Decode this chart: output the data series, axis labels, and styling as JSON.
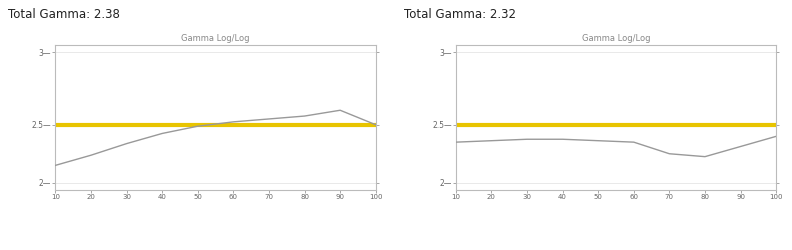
{
  "chart1": {
    "title": "Total Gamma: 2.38",
    "subtitle": "Gamma Log/Log",
    "xlim": [
      10,
      100
    ],
    "ylim": [
      2.05,
      3.05
    ],
    "yticks": [
      2.1,
      2.5,
      3.0
    ],
    "ytick_labels": [
      "2—",
      "2.5—",
      "3—"
    ],
    "xticks": [
      10,
      20,
      30,
      40,
      50,
      60,
      70,
      80,
      90,
      100
    ],
    "ref_line_y": 2.5,
    "ref_color": "#e8c400",
    "curve_x": [
      10,
      20,
      30,
      40,
      50,
      60,
      70,
      80,
      90,
      100
    ],
    "curve_y": [
      2.22,
      2.29,
      2.37,
      2.44,
      2.49,
      2.52,
      2.54,
      2.56,
      2.6,
      2.5
    ],
    "curve_color": "#999999",
    "bg_color": "#ffffff"
  },
  "chart2": {
    "title": "Total Gamma: 2.32",
    "subtitle": "Gamma Log/Log",
    "xlim": [
      10,
      100
    ],
    "ylim": [
      2.05,
      3.05
    ],
    "yticks": [
      2.1,
      2.5,
      3.0
    ],
    "ytick_labels": [
      "2—",
      "2.5—",
      "3—"
    ],
    "xticks": [
      10,
      20,
      30,
      40,
      50,
      60,
      70,
      80,
      90,
      100
    ],
    "ref_line_y": 2.5,
    "ref_color": "#e8c400",
    "curve_x": [
      10,
      20,
      30,
      40,
      50,
      60,
      70,
      80,
      90,
      100
    ],
    "curve_y": [
      2.38,
      2.39,
      2.4,
      2.4,
      2.39,
      2.38,
      2.3,
      2.28,
      2.35,
      2.42
    ],
    "curve_color": "#999999",
    "bg_color": "#ffffff"
  }
}
